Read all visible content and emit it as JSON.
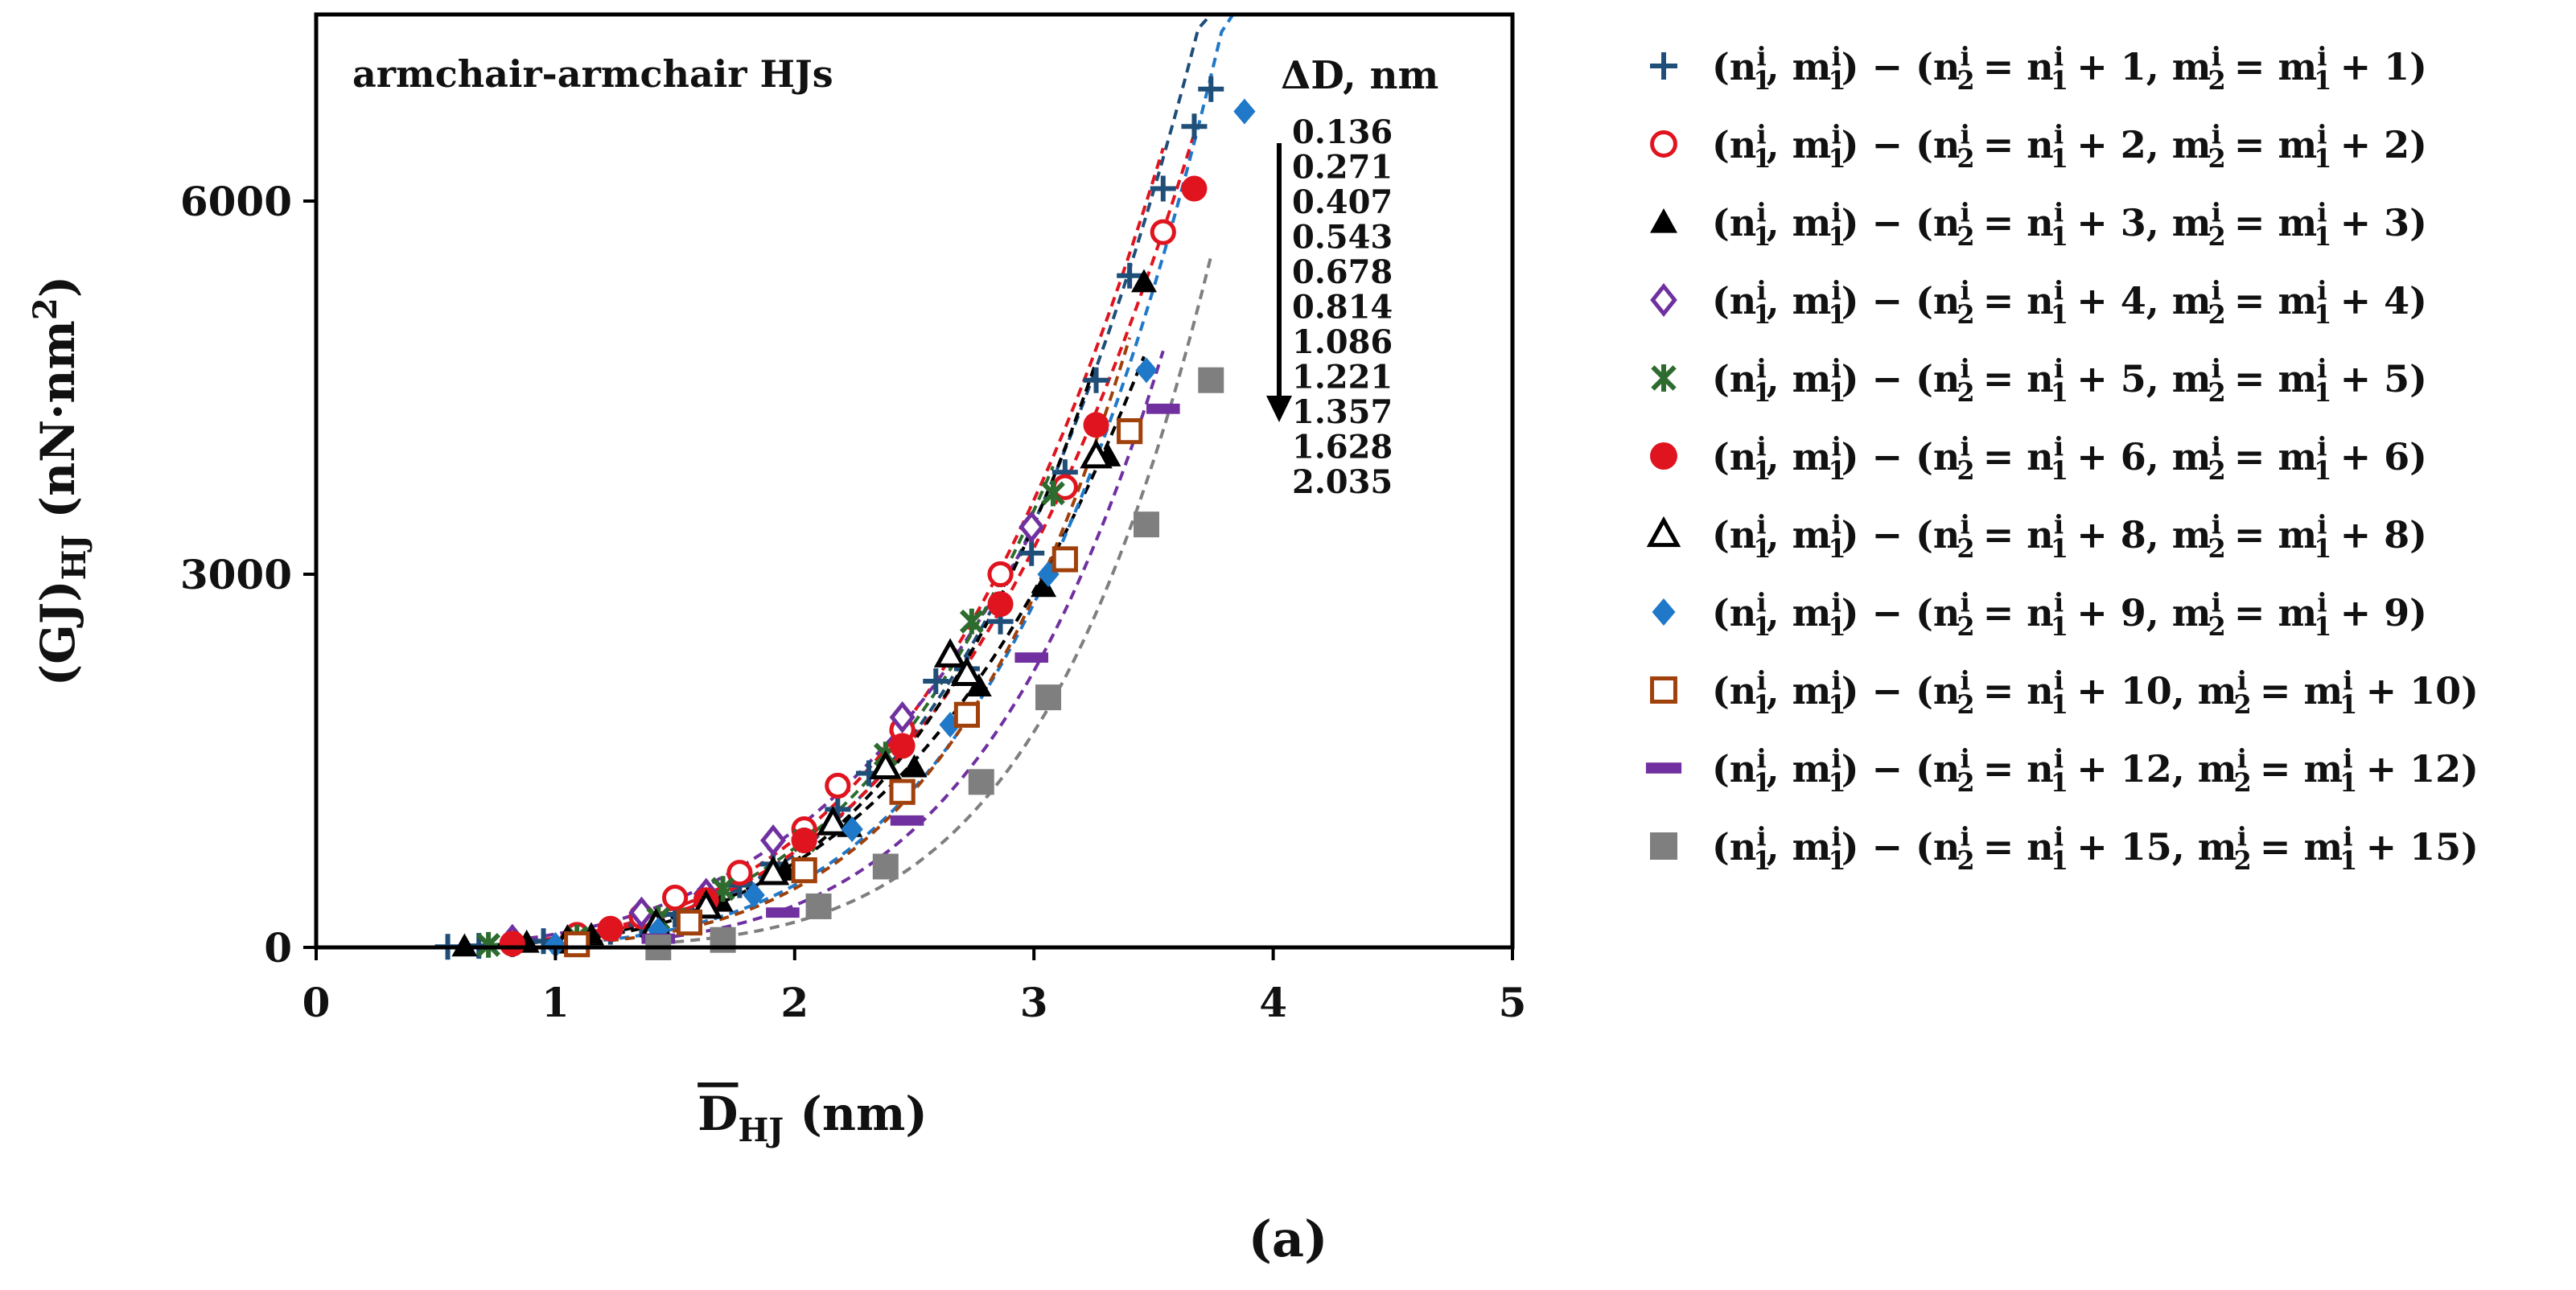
{
  "chart_data": {
    "type": "scatter",
    "title": "armchair-armchair HJs",
    "xlabel": "D̄HJ (nm)",
    "xlabel_parts": {
      "base": "D",
      "sub": "HJ",
      "unit": "(nm)"
    },
    "ylabel": "(GJ)HJ (nN·nm2)",
    "ylabel_parts": {
      "base": "(GJ)",
      "sub": "HJ",
      "unit": "(nN·nm",
      "sup": "2",
      "close": ")"
    },
    "xlim": [
      0,
      5
    ],
    "ylim": [
      0,
      7500
    ],
    "xticks": [
      "0",
      "1",
      "2",
      "3",
      "4",
      "5"
    ],
    "yticks": [
      "0",
      "3000",
      "6000"
    ],
    "grid": false,
    "legend_position": "right",
    "fit_lines": "dashed power-law trend lines per series",
    "delta_d_header": "ΔD, nm",
    "delta_d_values": [
      "0.136",
      "0.271",
      "0.407",
      "0.543",
      "0.678",
      "0.814",
      "1.086",
      "1.221",
      "1.357",
      "1.628",
      "2.035"
    ],
    "caption": "(a)",
    "series": [
      {
        "k": "1",
        "name": "(n1i,m1i) − (n2i = n1i + 1, m2i = m1i + 1)",
        "marker": "plus",
        "color": "#1f4e79",
        "x": [
          0.55,
          0.68,
          0.82,
          0.95,
          1.09,
          1.23,
          1.36,
          1.5,
          1.63,
          1.77,
          1.91,
          2.04,
          2.18,
          2.31,
          2.45,
          2.59,
          2.72,
          2.86,
          2.99,
          3.13,
          3.26,
          3.4,
          3.54,
          3.67,
          3.74
        ],
        "y": [
          5,
          12,
          25,
          50,
          80,
          125,
          185,
          265,
          370,
          500,
          670,
          870,
          1110,
          1400,
          1740,
          2140,
          2240,
          2620,
          3170,
          3820,
          4560,
          5400,
          6100,
          6600,
          6900
        ]
      },
      {
        "k": "2",
        "name": "(n1i,m1i) − (n2i = n1i + 2, m2i = m1i + 2)",
        "marker": "open-circle",
        "color": "#e0141e",
        "x": [
          0.82,
          1.09,
          1.36,
          1.5,
          1.77,
          2.04,
          2.18,
          2.45,
          2.86,
          3.13,
          3.54
        ],
        "y": [
          30,
          100,
          250,
          400,
          600,
          950,
          1300,
          1750,
          3000,
          3700,
          5750
        ]
      },
      {
        "k": "3",
        "name": "(n1i,m1i) − (n2i = n1i + 3, m2i = m1i + 3)",
        "marker": "filled-triangle",
        "color": "#000000",
        "x": [
          0.62,
          0.88,
          1.15,
          1.42,
          1.69,
          1.96,
          2.23,
          2.5,
          2.77,
          3.04,
          3.31,
          3.46
        ],
        "y": [
          10,
          40,
          100,
          200,
          370,
          620,
          970,
          1450,
          2100,
          2900,
          3950,
          5350
        ]
      },
      {
        "k": "4",
        "name": "(n1i,m1i) − (n2i = n1i + 4, m2i = m1i + 4)",
        "marker": "open-diamond",
        "color": "#7030a0",
        "x": [
          0.82,
          1.36,
          1.63,
          1.91,
          2.45,
          2.99
        ],
        "y": [
          60,
          280,
          430,
          860,
          1850,
          3380
        ]
      },
      {
        "k": "5",
        "name": "(n1i,m1i) − (n2i = n1i + 5, m2i = m1i + 5)",
        "marker": "x-star",
        "color": "#2e6b2e",
        "x": [
          0.72,
          1.09,
          1.43,
          1.7,
          2.04,
          2.38,
          2.74,
          3.08
        ],
        "y": [
          20,
          80,
          230,
          470,
          860,
          1550,
          2620,
          3650
        ]
      },
      {
        "k": "6",
        "name": "(n1i,m1i) − (n2i = n1i + 6, m2i = m1i + 6)",
        "marker": "filled-circle",
        "color": "#e0141e",
        "x": [
          0.82,
          1.23,
          1.63,
          2.04,
          2.45,
          2.86,
          3.26,
          3.67
        ],
        "y": [
          30,
          150,
          380,
          860,
          1620,
          2760,
          4200,
          6100
        ]
      },
      {
        "k": "8",
        "name": "(n1i,m1i) − (n2i = n1i + 8, m2i = m1i + 8)",
        "marker": "open-triangle",
        "color": "#000000",
        "x": [
          1.05,
          1.42,
          1.63,
          1.91,
          2.16,
          2.38,
          2.65,
          2.72,
          3.26
        ],
        "y": [
          50,
          180,
          330,
          600,
          1000,
          1450,
          2350,
          2200,
          3950
        ]
      },
      {
        "k": "9",
        "name": "(n1i,m1i) − (n2i = n1i + 9, m2i = m1i + 9)",
        "marker": "filled-diamond",
        "color": "#1f78c8",
        "x": [
          1.0,
          1.43,
          1.83,
          2.24,
          2.65,
          3.06,
          3.47,
          3.88
        ],
        "y": [
          20,
          140,
          420,
          950,
          1790,
          3000,
          4640,
          6720
        ]
      },
      {
        "k": "10",
        "name": "(n1i,m1i) − (n2i = n1i + 10, m2i = m1i + 10)",
        "marker": "open-square",
        "color": "#a0400a",
        "x": [
          1.09,
          1.56,
          2.04,
          2.45,
          2.72,
          3.13,
          3.4
        ],
        "y": [
          25,
          200,
          620,
          1250,
          1870,
          3120,
          4150
        ]
      },
      {
        "k": "12",
        "name": "(n1i,m1i) − (n2i = n1i + 12, m2i = m1i + 12)",
        "marker": "dash",
        "color": "#7030a0",
        "x": [
          1.43,
          1.95,
          2.47,
          2.99,
          3.54
        ],
        "y": [
          70,
          280,
          1020,
          2330,
          4330
        ]
      },
      {
        "k": "15",
        "name": "(n1i,m1i) − (n2i = n1i + 15, m2i = m1i + 15)",
        "marker": "filled-square",
        "color": "#7f7f7f",
        "x": [
          1.43,
          1.7,
          2.1,
          2.38,
          2.78,
          3.06,
          3.47,
          3.74
        ],
        "y": [
          0,
          60,
          330,
          650,
          1330,
          2010,
          3400,
          4560
        ]
      }
    ]
  }
}
